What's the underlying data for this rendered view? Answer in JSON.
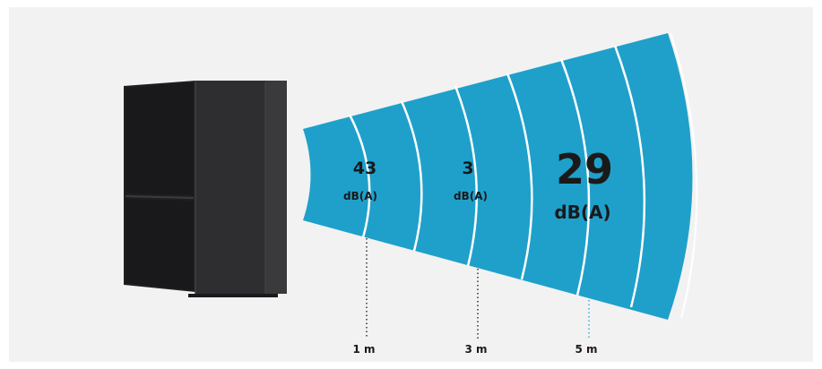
{
  "colors": {
    "background": "#f2f2f2",
    "cone": "#1fa0cb",
    "ring": "#ffffff",
    "unit_body": "#2b2b2d",
    "text": "#1a1a1a"
  },
  "readings": [
    {
      "value": "43",
      "unit": "dB(A)",
      "distance": "1 m"
    },
    {
      "value": "3",
      "unit": "dB(A)",
      "distance": "3 m"
    },
    {
      "value": "29",
      "unit": "dB(A)",
      "distance": "5 m"
    }
  ]
}
